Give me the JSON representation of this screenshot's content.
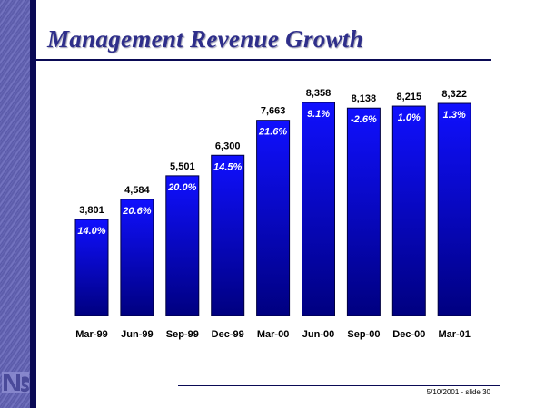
{
  "slide": {
    "title": "Management Revenue Growth",
    "footer": "5/10/2001 - slide 30",
    "logo_icon": "ns-logo-icon"
  },
  "colors": {
    "bar_top": "#1010ff",
    "bar_bottom": "#000080",
    "title": "#2e2e8a",
    "rule": "#0a0a55"
  },
  "chart_data": {
    "type": "bar",
    "title": "Management Revenue Growth",
    "xlabel": "",
    "ylabel": "",
    "categories": [
      "Mar-99",
      "Jun-99",
      "Sep-99",
      "Dec-99",
      "Mar-00",
      "Jun-00",
      "Sep-00",
      "Dec-00",
      "Mar-01"
    ],
    "values": [
      3801,
      4584,
      5501,
      6300,
      7663,
      8358,
      8138,
      8215,
      8322
    ],
    "value_labels": [
      "3,801",
      "4,584",
      "5,501",
      "6,300",
      "7,663",
      "8,358",
      "8,138",
      "8,215",
      "8,322"
    ],
    "growth_labels": [
      "14.0%",
      "20.6%",
      "20.0%",
      "14.5%",
      "21.6%",
      "9.1%",
      "-2.6%",
      "1.0%",
      "1.3%"
    ],
    "ylim": [
      0,
      9000
    ],
    "grid": false,
    "legend": "none"
  }
}
